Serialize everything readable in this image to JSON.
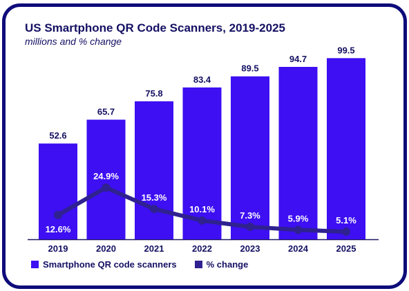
{
  "chart_data": {
    "type": "bar",
    "title": "US Smartphone QR Code Scanners, 2019-2025",
    "subtitle": "millions and % change",
    "categories": [
      "2019",
      "2020",
      "2021",
      "2022",
      "2023",
      "2024",
      "2025"
    ],
    "series": [
      {
        "name": "Smartphone QR code scanners",
        "type": "bar",
        "values": [
          52.6,
          65.7,
          75.8,
          83.4,
          89.5,
          94.7,
          99.5
        ],
        "labels": [
          "52.6",
          "65.7",
          "75.8",
          "83.4",
          "89.5",
          "94.7",
          "99.5"
        ]
      },
      {
        "name": "% change",
        "type": "line",
        "values": [
          12.6,
          24.9,
          15.3,
          10.1,
          7.3,
          5.9,
          5.1
        ],
        "labels": [
          "12.6%",
          "24.9%",
          "15.3%",
          "10.1%",
          "7.3%",
          "5.9%",
          "5.1%"
        ]
      }
    ],
    "ylim": [
      0,
      100
    ],
    "y2lim": [
      0,
      30
    ],
    "grid": false,
    "legend_position": "bottom-left"
  },
  "colors": {
    "bar": "#3d0ff2",
    "line": "#2f2190",
    "text": "#141063",
    "border": "#0e0c7a",
    "baseline": "#1a1660"
  }
}
